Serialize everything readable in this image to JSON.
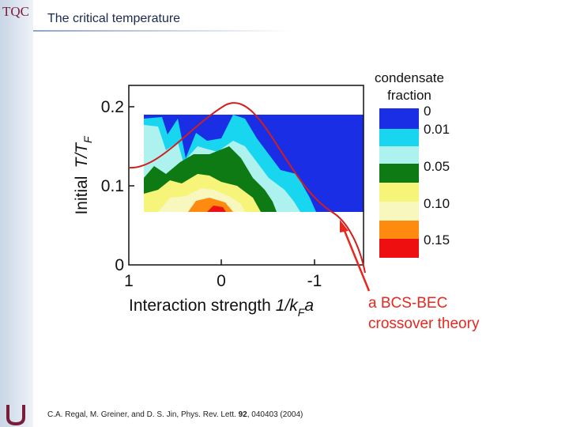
{
  "header": {
    "logo": "TQC",
    "title": "The critical temperature"
  },
  "figure": {
    "y_label": "Initial",
    "y_label_symbol": "T/T",
    "y_label_subscript": "F",
    "y_ticks": [
      "0.2",
      "0.1",
      "0"
    ],
    "x_ticks": [
      "1",
      "0",
      "-1"
    ],
    "x_label": "Interaction strength",
    "x_label_symbol": "1/k",
    "x_label_subscript": "F",
    "x_label_end": "a",
    "legend_title": [
      "condensate",
      "fraction"
    ],
    "legend_labels": [
      "0",
      "0.01",
      "0.05",
      "0.10",
      "0.15"
    ],
    "annotation": [
      "a BCS-BEC",
      "crossover theory"
    ]
  },
  "citation": {
    "text": "C.A. Regal, M. Greiner, and D. S. Jin, Phys. Rev. Lett.",
    "volume": "92",
    "rest": ", 040403 (2004)"
  }
}
